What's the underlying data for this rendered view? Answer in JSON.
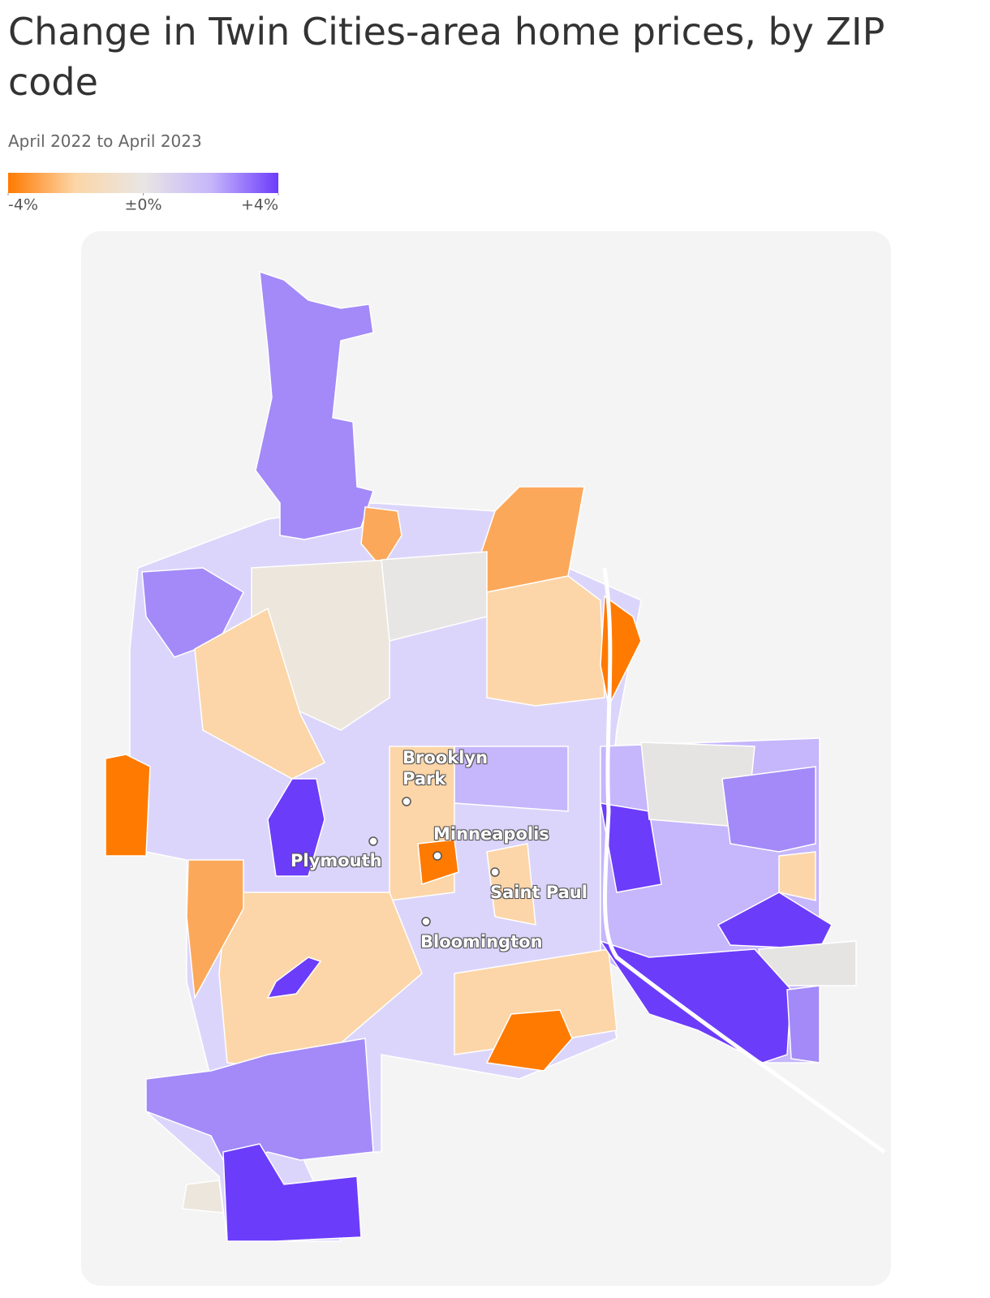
{
  "header": {
    "title": "Change in Twin Cities-area home prices, by ZIP code",
    "subtitle": "April 2022 to April 2023"
  },
  "legend": {
    "range": [
      -4,
      4
    ],
    "colors": [
      "#ff7a00",
      "#fcd6a8",
      "#e8e6e4",
      "#c6b6fb",
      "#6c3cfb"
    ],
    "ticks": [
      {
        "value": -4,
        "label": "-4%"
      },
      {
        "value": 0,
        "label": "±0%"
      },
      {
        "value": 4,
        "label": "+4%"
      }
    ]
  },
  "map": {
    "cities": [
      {
        "name": "Brooklyn Park"
      },
      {
        "name": "Minneapolis"
      },
      {
        "name": "Plymouth"
      },
      {
        "name": "Saint Paul"
      },
      {
        "name": "Bloomington"
      }
    ]
  }
}
